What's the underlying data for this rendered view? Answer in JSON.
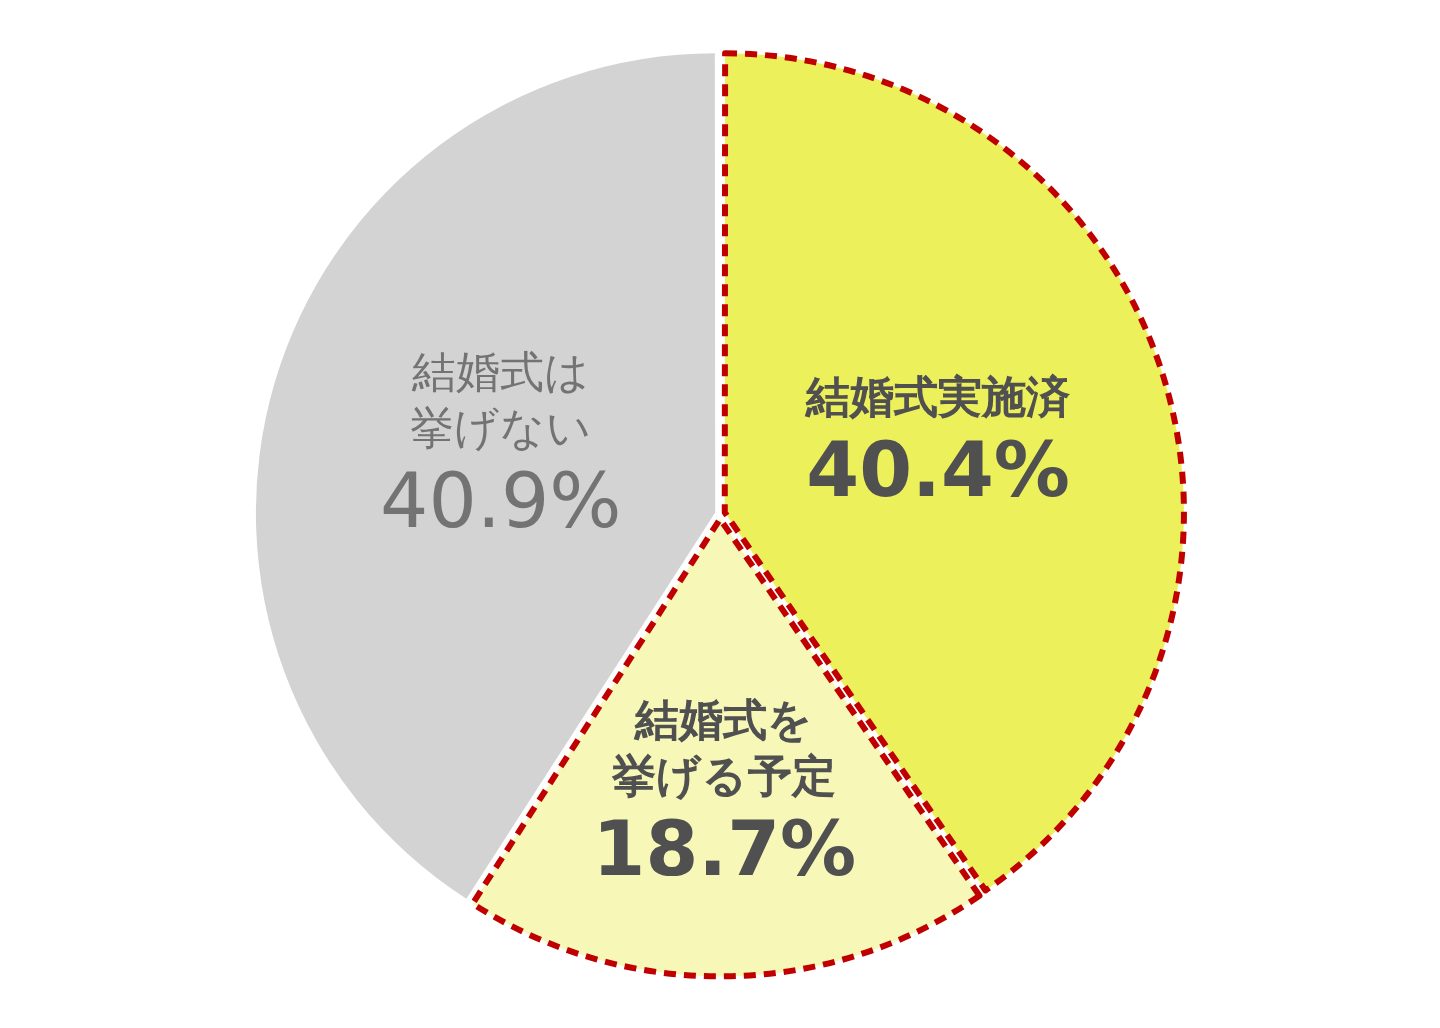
{
  "chart_data": {
    "type": "pie",
    "categories": [
      "結婚式実施済",
      "結婚式を挙げる予定",
      "結婚式は挙げない"
    ],
    "values": [
      40.4,
      18.7,
      40.9
    ],
    "colors": [
      "#ecf05a",
      "#f7f8b8",
      "#d3d3d3"
    ],
    "value_labels": [
      "40.4%",
      "18.7%",
      "40.9%"
    ],
    "legend": false,
    "line_style": "dashed"
  }
}
